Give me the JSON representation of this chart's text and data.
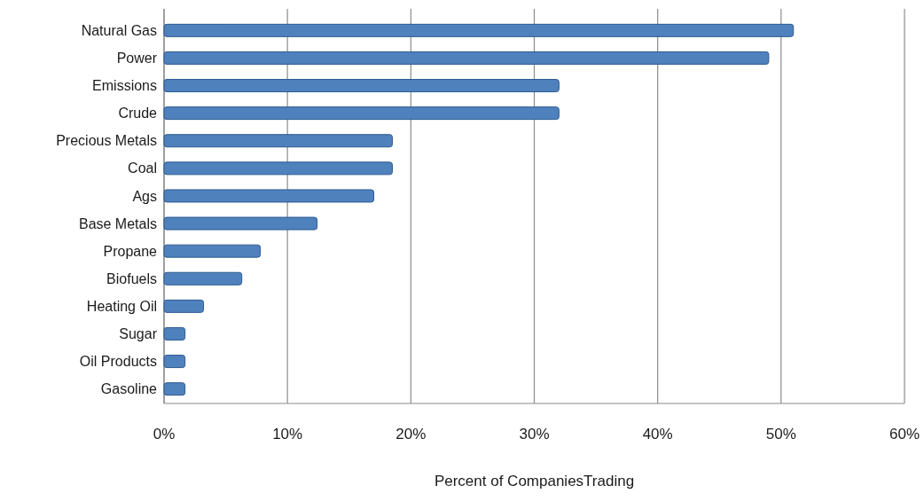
{
  "chart_data": {
    "type": "bar",
    "orientation": "horizontal",
    "xlabel": "Percent of CompaniesTrading",
    "categories": [
      "Natural Gas",
      "Power",
      "Emissions",
      "Crude",
      "Precious Metals",
      "Coal",
      "Ags",
      "Base Metals",
      "Propane",
      "Biofuels",
      "Heating Oil",
      "Sugar",
      "Oil Products",
      "Gasoline"
    ],
    "values": [
      51,
      49,
      32,
      32,
      18.5,
      18.5,
      17,
      12.4,
      7.8,
      6.3,
      3.2,
      1.7,
      1.7,
      1.7
    ],
    "color": "#4f81bd",
    "xlim": [
      0,
      60
    ],
    "xticks": [
      {
        "value": 0,
        "label": "0%"
      },
      {
        "value": 10,
        "label": "10%"
      },
      {
        "value": 20,
        "label": "20%"
      },
      {
        "value": 30,
        "label": "30%"
      },
      {
        "value": 40,
        "label": "40%"
      },
      {
        "value": 50,
        "label": "50%"
      },
      {
        "value": 60,
        "label": "60%"
      }
    ],
    "grid": "x"
  }
}
